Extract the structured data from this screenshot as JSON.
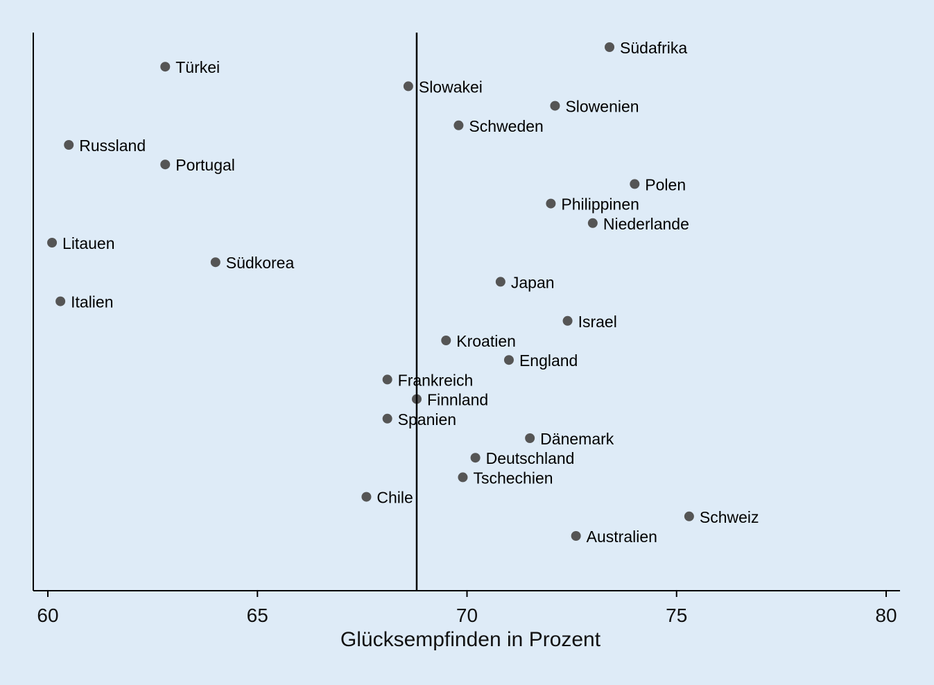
{
  "chart_data": {
    "type": "scatter",
    "title": "",
    "xlabel": "Glücksempfinden in Prozent",
    "ylabel": "",
    "xlim": [
      60,
      80
    ],
    "xticks": [
      60,
      65,
      70,
      75,
      80
    ],
    "reference_line_x": 68.8,
    "colors": {
      "background": "#deebf7",
      "marker": "#555555",
      "axis": "#000000",
      "text": "#000000"
    },
    "points": [
      {
        "label": "Südafrika",
        "x": 73.4
      },
      {
        "label": "Türkei",
        "x": 62.8
      },
      {
        "label": "Slowakei",
        "x": 68.6
      },
      {
        "label": "Slowenien",
        "x": 72.1
      },
      {
        "label": "Schweden",
        "x": 69.8
      },
      {
        "label": "Russland",
        "x": 60.5
      },
      {
        "label": "Portugal",
        "x": 62.8
      },
      {
        "label": "Polen",
        "x": 74.0
      },
      {
        "label": "Philippinen",
        "x": 72.0
      },
      {
        "label": "Niederlande",
        "x": 73.0
      },
      {
        "label": "Litauen",
        "x": 60.1
      },
      {
        "label": "Südkorea",
        "x": 64.0
      },
      {
        "label": "Japan",
        "x": 70.8
      },
      {
        "label": "Italien",
        "x": 60.3
      },
      {
        "label": "Israel",
        "x": 72.4
      },
      {
        "label": "Kroatien",
        "x": 69.5
      },
      {
        "label": "England",
        "x": 71.0
      },
      {
        "label": "Frankreich",
        "x": 68.1
      },
      {
        "label": "Finnland",
        "x": 68.8
      },
      {
        "label": "Spanien",
        "x": 68.1
      },
      {
        "label": "Dänemark",
        "x": 71.5
      },
      {
        "label": "Deutschland",
        "x": 70.2
      },
      {
        "label": "Tschechien",
        "x": 69.9
      },
      {
        "label": "Chile",
        "x": 67.6
      },
      {
        "label": "Schweiz",
        "x": 75.3
      },
      {
        "label": "Australien",
        "x": 72.6
      }
    ]
  }
}
